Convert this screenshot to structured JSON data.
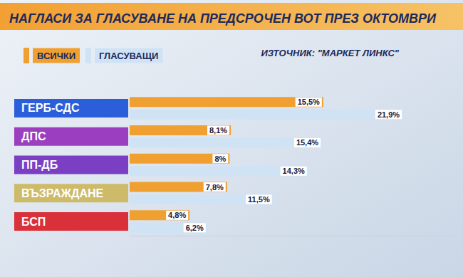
{
  "chart_data": {
    "type": "bar",
    "orientation": "horizontal",
    "title": "НАГЛАСИ ЗА ГЛАСУВАНЕ НА ПРЕДСРОЧЕН ВОТ ПРЕЗ ОКТОМВРИ",
    "annotations": [
      "ИЗТОЧНИК: \"МАРКЕТ ЛИНКС\""
    ],
    "categories": [
      "ГЕРБ-СДС",
      "ДПС",
      "ПП-ДБ",
      "ВЪЗРАЖДАНЕ",
      "БСП"
    ],
    "series": [
      {
        "name": "ВСИЧКИ",
        "color": "#f0a030",
        "values": [
          15.5,
          8.1,
          8,
          7.8,
          4.8
        ],
        "value_labels": [
          "15,5%",
          "8,1%",
          "8%",
          "7,8%",
          "4,8%"
        ]
      },
      {
        "name": "ГЛАСУВАЩИ",
        "color": "#cfe3f5",
        "values": [
          21.9,
          15.4,
          14.3,
          11.5,
          6.2
        ],
        "value_labels": [
          "21,9%",
          "15,4%",
          "14,3%",
          "11,5%",
          "6,2%"
        ]
      }
    ],
    "xlim": [
      0,
      26
    ],
    "data_labels": true,
    "tick_labels": false,
    "grid": false,
    "legend": "top left"
  }
}
